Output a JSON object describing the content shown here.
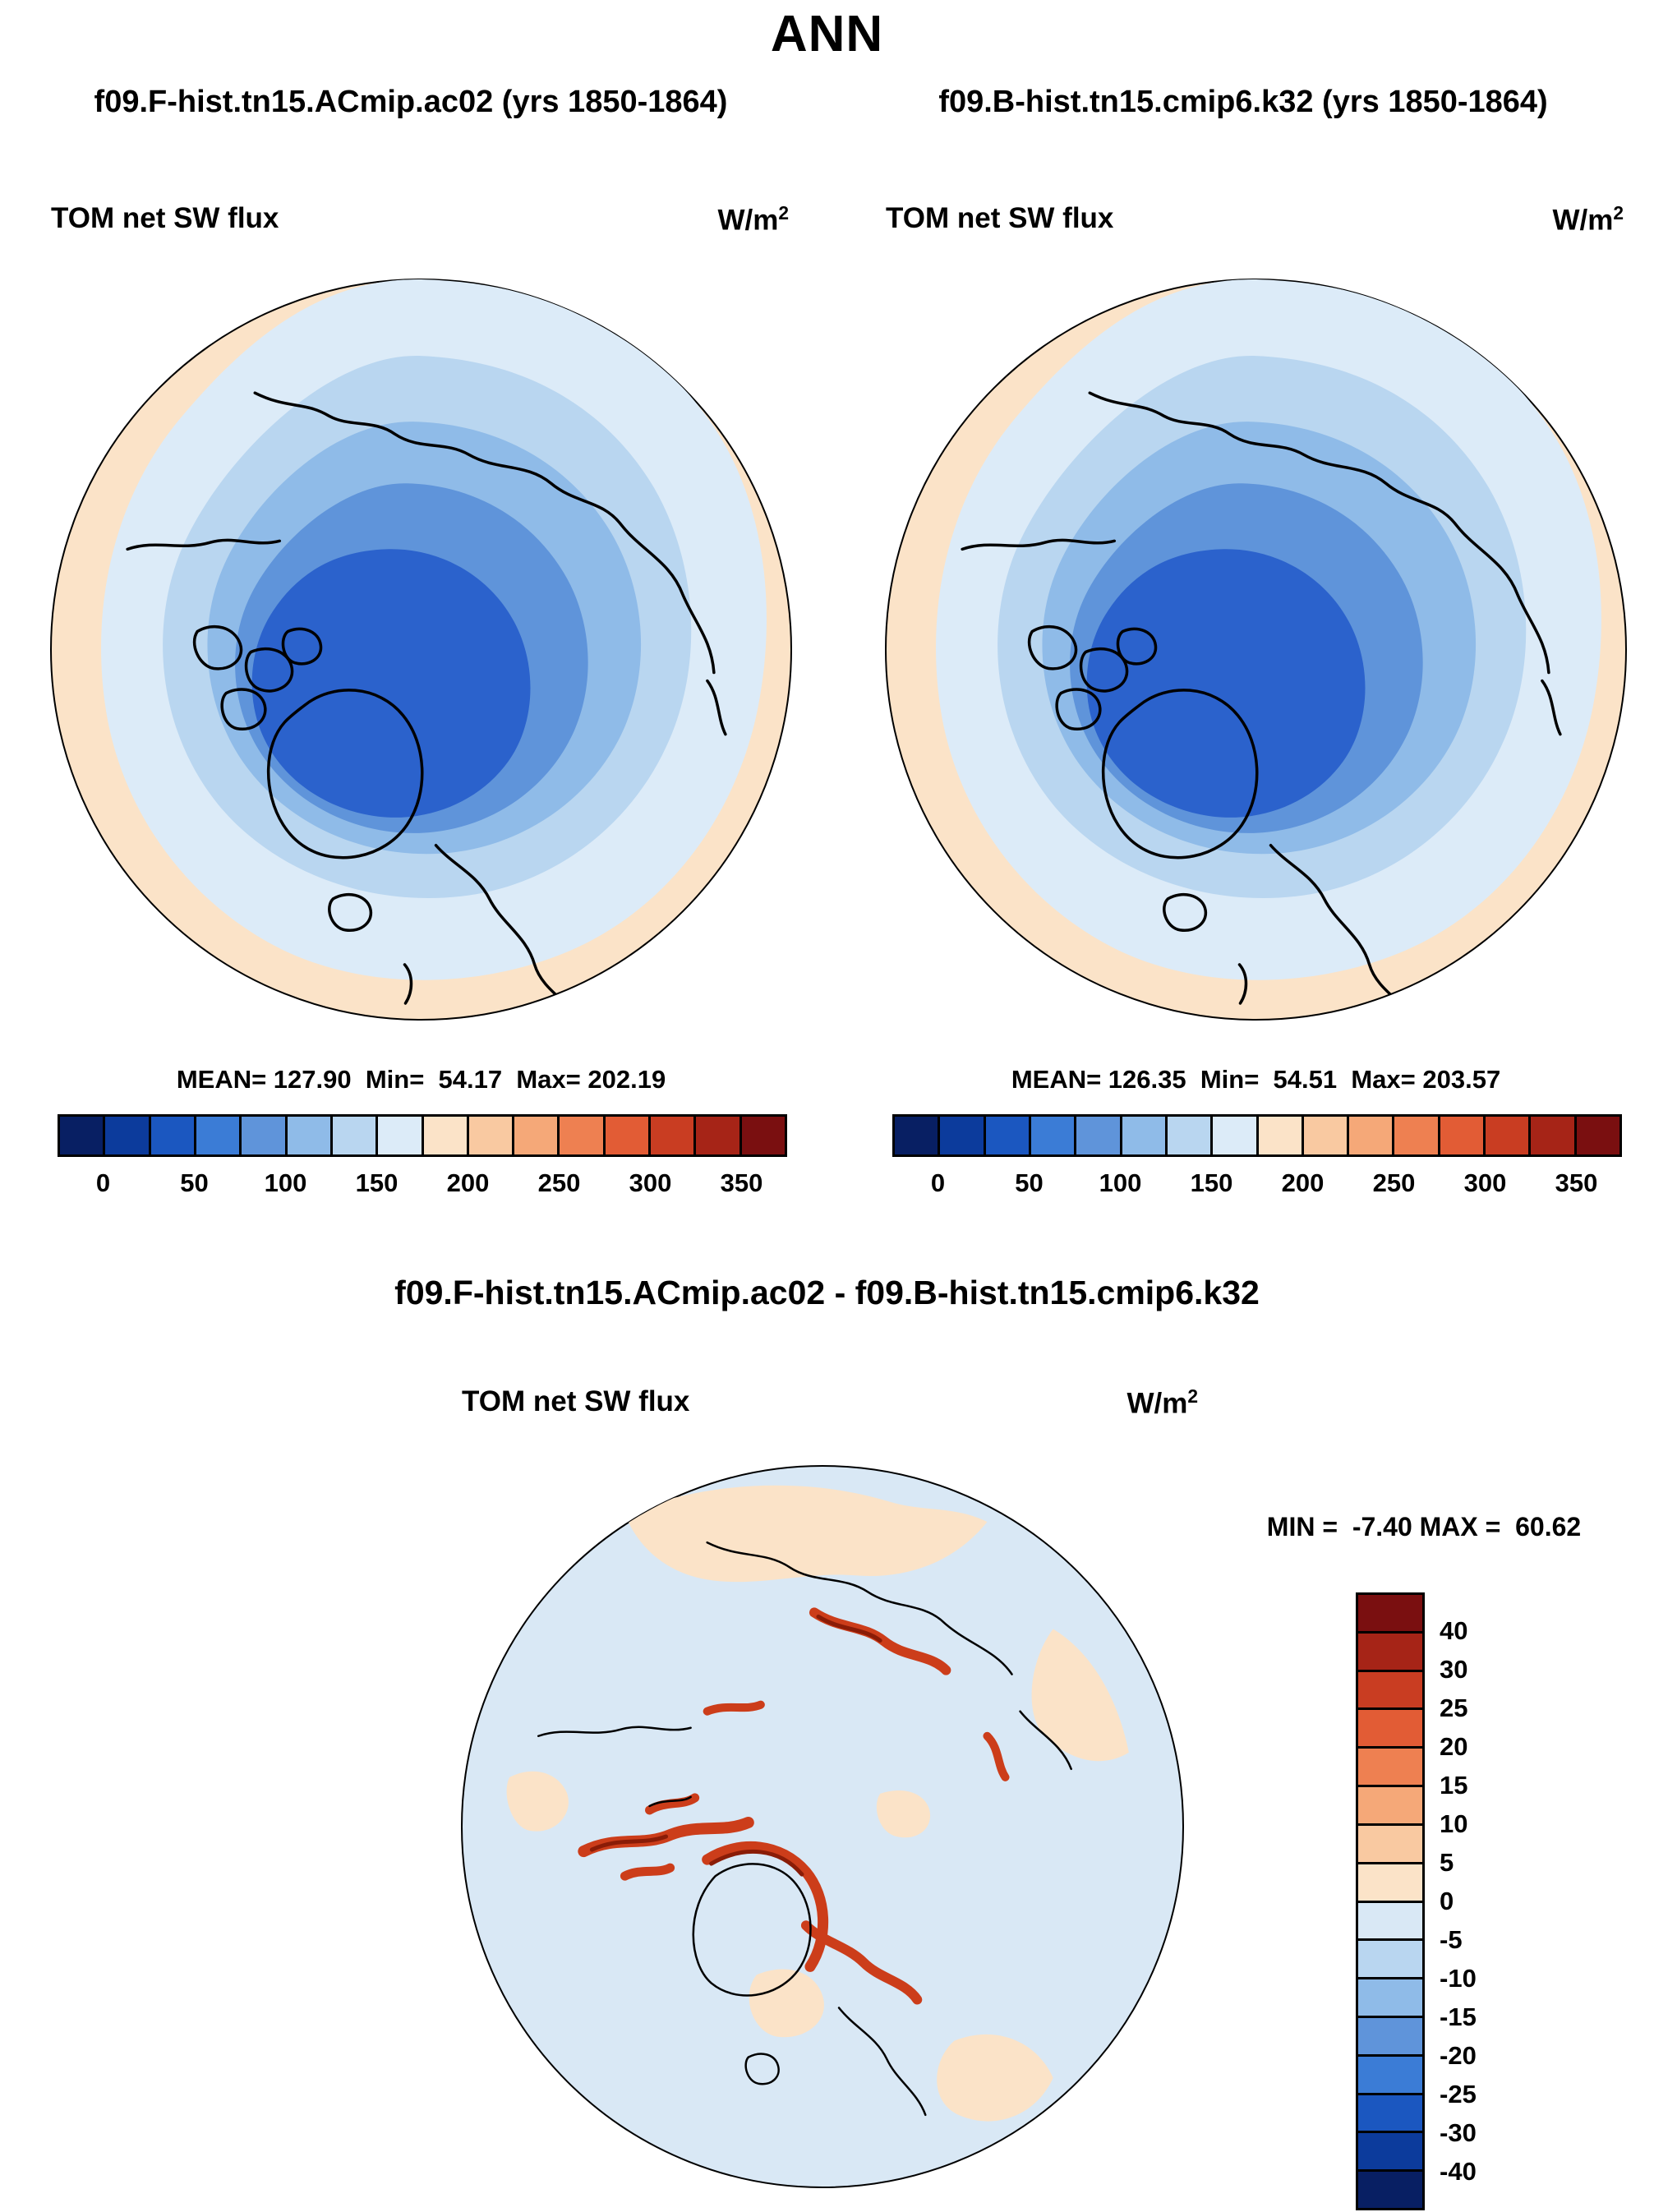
{
  "title": "ANN",
  "units": {
    "base": "W/m",
    "exp": "2"
  },
  "panels": [
    {
      "subtitle": "f09.F-hist.tn15.ACmip.ac02 (yrs 1850-1864)",
      "field_label": "TOM net SW flux",
      "stats": "MEAN= 127.90  Min=  54.17  Max= 202.19",
      "mean": 127.9,
      "min": 54.17,
      "max": 202.19
    },
    {
      "subtitle": "f09.B-hist.tn15.cmip6.k32 (yrs 1850-1864)",
      "field_label": "TOM net SW flux",
      "stats": "MEAN= 126.35  Min=  54.51  Max= 203.57",
      "mean": 126.35,
      "min": 54.51,
      "max": 203.57
    }
  ],
  "diff_panel": {
    "title": "f09.F-hist.tn15.ACmip.ac02 - f09.B-hist.tn15.cmip6.k32",
    "field_label": "TOM net SW flux",
    "stats": "MIN =  -7.40 MAX =  60.62",
    "min": -7.4,
    "max": 60.62
  },
  "flux_colorbar": {
    "tick_labels": [
      "0",
      "50",
      "100",
      "150",
      "200",
      "250",
      "300",
      "350"
    ],
    "colors": [
      "#081f63",
      "#0c3b9c",
      "#1b57c0",
      "#3b7cd6",
      "#5f94da",
      "#8fbbe8",
      "#b9d6f0",
      "#dcebf8",
      "#fbe3c8",
      "#f9c9a1",
      "#f5a878",
      "#ee8051",
      "#e25c35",
      "#c93d22",
      "#a62417",
      "#7a0f10"
    ]
  },
  "diff_colorbar": {
    "tick_labels": [
      "40",
      "30",
      "25",
      "20",
      "15",
      "10",
      "5",
      "0",
      "-5",
      "-10",
      "-15",
      "-20",
      "-25",
      "-30",
      "-40"
    ],
    "colors": [
      "#7a0f10",
      "#a62417",
      "#c93d22",
      "#e25c35",
      "#ee8051",
      "#f5a878",
      "#f9c9a1",
      "#fbe3c8",
      "#d9e8f5",
      "#b9d6f0",
      "#8fbbe8",
      "#5f94da",
      "#3b7cd6",
      "#1b57c0",
      "#0c3b9c",
      "#081f63"
    ]
  },
  "palette": {
    "cream": "#fbe3c8",
    "b1": "#dcebf8",
    "b2": "#b9d6f0",
    "b3": "#8fbbe8",
    "b4": "#5f94da",
    "b5": "#2b62cc",
    "dbg": "#d9e8f5",
    "dred": "#cc3d1a",
    "dreddark": "#8a1c07"
  },
  "chart_data": [
    {
      "type": "heatmap",
      "projection": "north-polar-stereographic",
      "title": "f09.F-hist.tn15.ACmip.ac02 (yrs 1850-1864)",
      "variable": "TOM net SW flux",
      "units": "W/m^2",
      "season": "ANN",
      "mean": 127.9,
      "min": 54.17,
      "max": 202.19,
      "contour_levels": [
        0,
        25,
        50,
        75,
        100,
        125,
        150,
        175,
        200,
        225,
        250,
        275,
        300,
        325,
        350
      ],
      "colorbar_ticks": [
        0,
        50,
        100,
        150,
        200,
        250,
        300,
        350
      ],
      "legend_position": "bottom"
    },
    {
      "type": "heatmap",
      "projection": "north-polar-stereographic",
      "title": "f09.B-hist.tn15.cmip6.k32 (yrs 1850-1864)",
      "variable": "TOM net SW flux",
      "units": "W/m^2",
      "season": "ANN",
      "mean": 126.35,
      "min": 54.51,
      "max": 203.57,
      "contour_levels": [
        0,
        25,
        50,
        75,
        100,
        125,
        150,
        175,
        200,
        225,
        250,
        275,
        300,
        325,
        350
      ],
      "colorbar_ticks": [
        0,
        50,
        100,
        150,
        200,
        250,
        300,
        350
      ],
      "legend_position": "bottom"
    },
    {
      "type": "heatmap",
      "projection": "north-polar-stereographic",
      "title": "f09.F-hist.tn15.ACmip.ac02 - f09.B-hist.tn15.cmip6.k32",
      "variable": "TOM net SW flux difference",
      "units": "W/m^2",
      "season": "ANN",
      "min": -7.4,
      "max": 60.62,
      "contour_levels": [
        -40,
        -30,
        -25,
        -20,
        -15,
        -10,
        -5,
        0,
        5,
        10,
        15,
        20,
        25,
        30,
        40
      ],
      "legend_position": "right"
    }
  ]
}
